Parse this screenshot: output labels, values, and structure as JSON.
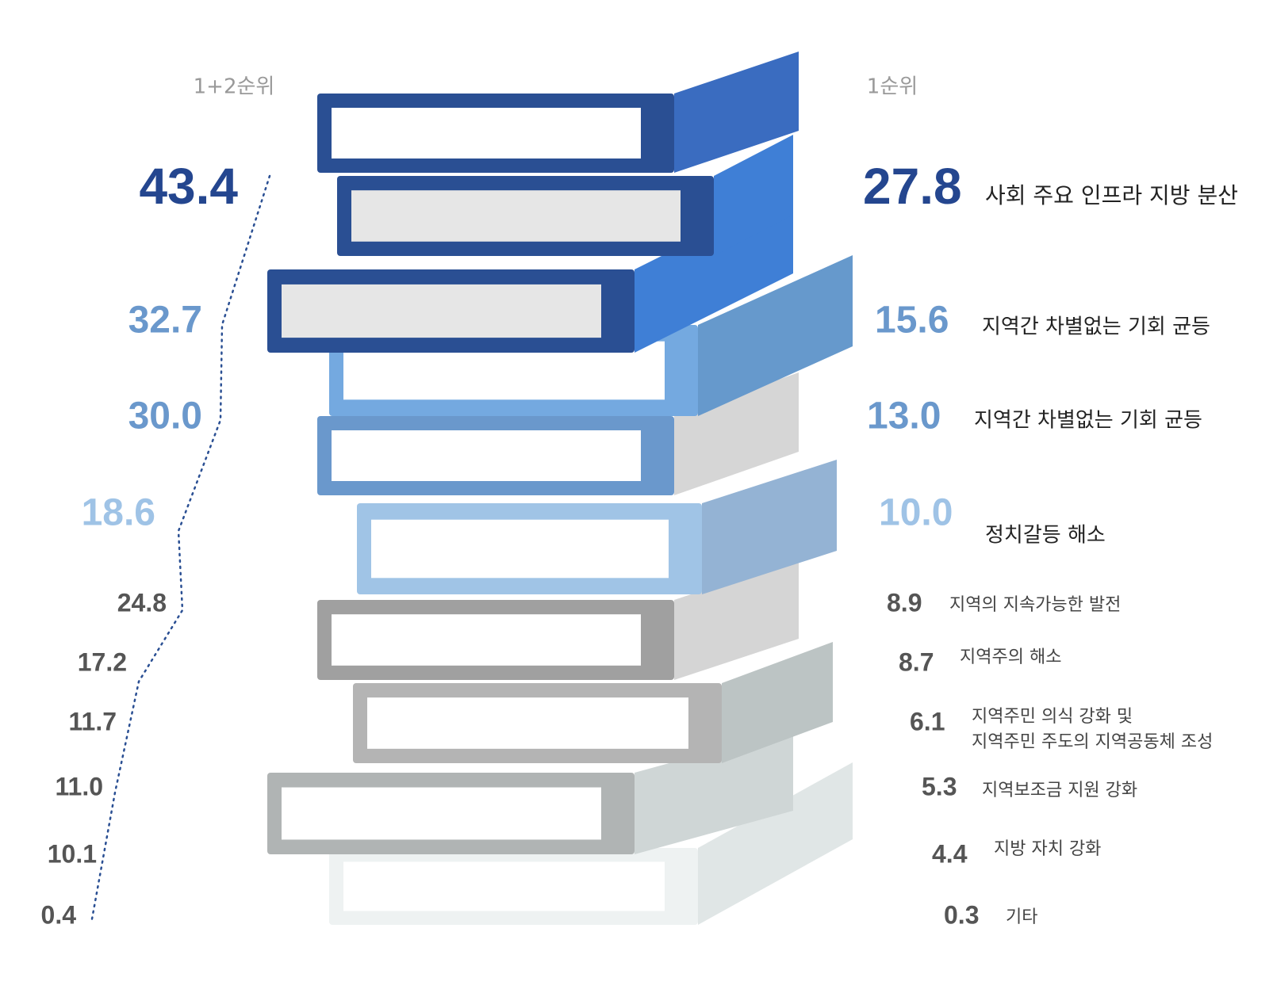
{
  "header": {
    "left": "1+2순위",
    "right": "1순위"
  },
  "items": [
    {
      "rank12": "43.4",
      "rank1": "27.8",
      "label": [
        "사회 주요 인프라 지방 분산"
      ]
    },
    {
      "rank12": "32.7",
      "rank1": "15.6",
      "label": [
        "지역간 차별없는 기회 균등"
      ]
    },
    {
      "rank12": "30.0",
      "rank1": "13.0",
      "label": [
        "지역간 차별없는 기회 균등"
      ]
    },
    {
      "rank12": "18.6",
      "rank1": "10.0",
      "label": [
        "정치갈등 해소"
      ]
    },
    {
      "rank12": "24.8",
      "rank1": "8.9",
      "label": [
        "지역의 지속가능한 발전"
      ]
    },
    {
      "rank12": "17.2",
      "rank1": "8.7",
      "label": [
        "지역주의 해소"
      ]
    },
    {
      "rank12": "11.7",
      "rank1": "6.1",
      "label": [
        "지역주민 의식 강화 및",
        "지역주민 주도의 지역공동체 조성"
      ]
    },
    {
      "rank12": "11.0",
      "rank1": "5.3",
      "label": [
        "지역보조금 지원 강화"
      ]
    },
    {
      "rank12": "10.1",
      "rank1": "4.4",
      "label": [
        "지방 자치 강화"
      ]
    },
    {
      "rank12": "0.4",
      "rank1": "0.3",
      "label": [
        "기타"
      ]
    }
  ]
}
